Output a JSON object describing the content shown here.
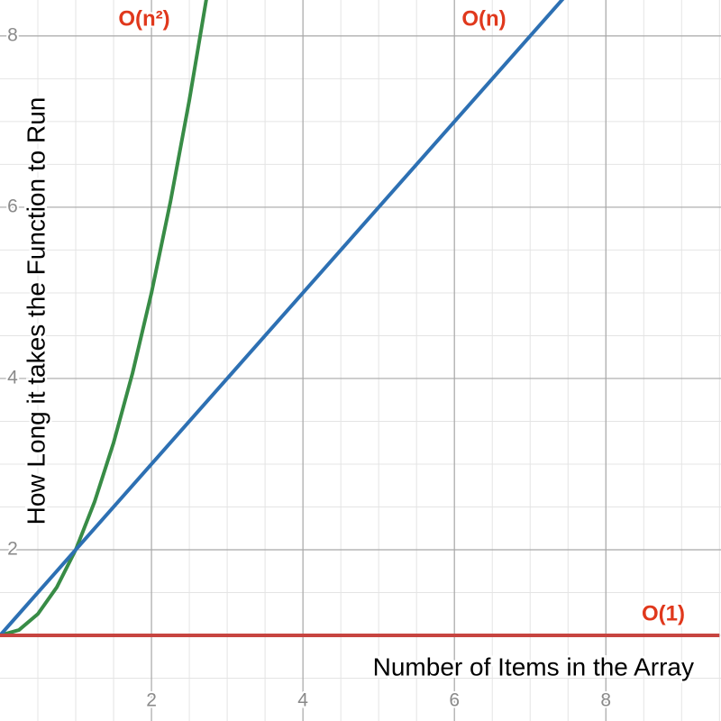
{
  "chart_data": {
    "type": "line",
    "xlabel": "Number of Items in the Array",
    "ylabel": "How Long it takes the Function to Run",
    "x": [
      0,
      0.25,
      0.5,
      0.75,
      1,
      1.25,
      1.5,
      1.75,
      2,
      2.25,
      2.5,
      2.75,
      3,
      3.25,
      3.5,
      3.75,
      4,
      4.25,
      4.5,
      4.75,
      5,
      5.25,
      5.5,
      5.75,
      6,
      6.25,
      6.5,
      6.75,
      7,
      7.25,
      7.5,
      7.75,
      8,
      8.25,
      8.5,
      8.75,
      9,
      9.25,
      9.5
    ],
    "series": [
      {
        "name": "O(n²)",
        "color": "#388c46",
        "values": [
          1,
          1.0625,
          1.25,
          1.5625,
          2,
          2.5625,
          3.25,
          4.0625,
          5,
          6.0625,
          7.25,
          8.5625,
          null,
          null,
          null,
          null,
          null,
          null,
          null,
          null,
          null,
          null,
          null,
          null,
          null,
          null,
          null,
          null,
          null,
          null,
          null,
          null,
          null,
          null,
          null,
          null,
          null,
          null,
          null
        ]
      },
      {
        "name": "O(n)",
        "color": "#2d70b3",
        "values": [
          1,
          1.25,
          1.5,
          1.75,
          2,
          2.25,
          2.5,
          2.75,
          3,
          3.25,
          3.5,
          3.75,
          4,
          4.25,
          4.5,
          4.75,
          5,
          5.25,
          5.5,
          5.75,
          6,
          6.25,
          6.5,
          6.75,
          7,
          7.25,
          7.5,
          7.75,
          8,
          8.25,
          8.5,
          null,
          null,
          null,
          null,
          null,
          null,
          null,
          null
        ]
      },
      {
        "name": "O(1)",
        "color": "#c74440",
        "values": [
          1,
          1,
          1,
          1,
          1,
          1,
          1,
          1,
          1,
          1,
          1,
          1,
          1,
          1,
          1,
          1,
          1,
          1,
          1,
          1,
          1,
          1,
          1,
          1,
          1,
          1,
          1,
          1,
          1,
          1,
          1,
          1,
          1,
          1,
          1,
          1,
          1,
          1,
          1
        ]
      }
    ],
    "label_color": "#e0381c",
    "xlim": [
      0,
      9.52
    ],
    "ylim": [
      0,
      8.42
    ],
    "xticks": [
      2,
      4,
      6,
      8
    ],
    "yticks": [
      2,
      4,
      6,
      8
    ],
    "grid": true
  }
}
